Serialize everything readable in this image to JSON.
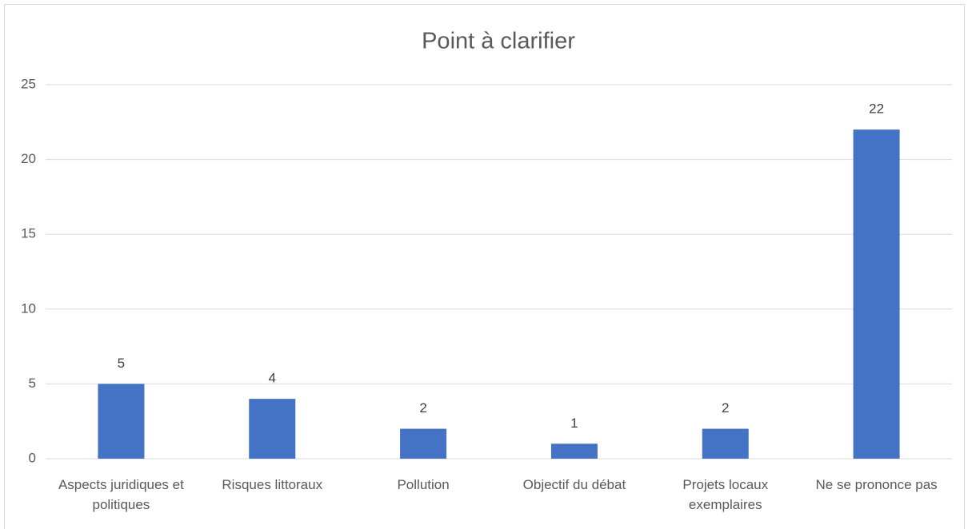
{
  "chart_data": {
    "type": "bar",
    "title": "Point à clarifier",
    "categories": [
      "Aspects juridiques et politiques",
      "Risques littoraux",
      "Pollution",
      "Objectif du débat",
      "Projets locaux exemplaires",
      "Ne se prononce pas"
    ],
    "values": [
      5,
      4,
      2,
      1,
      2,
      22
    ],
    "color": "#4472c4",
    "ylim": [
      0,
      25
    ],
    "yticks": [
      0,
      5,
      10,
      15,
      20,
      25
    ],
    "grid": true
  }
}
